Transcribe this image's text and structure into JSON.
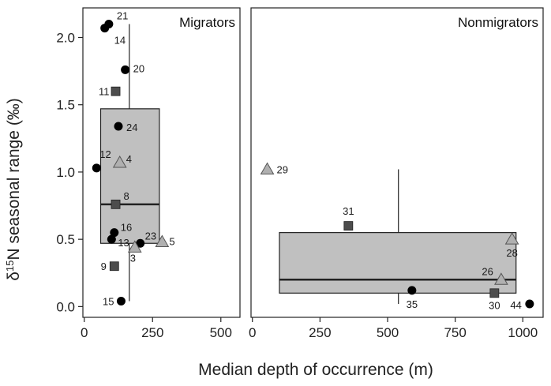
{
  "chart_data": {
    "type": "scatter",
    "subtype": "box-plot-with-points",
    "xlabel": "Median depth of occurrence (m)",
    "ylabel": "δ15N seasonal range (‰)",
    "ylabel_parts": {
      "prefix": "δ",
      "sup": "15",
      "rest": "N seasonal range (‰)"
    },
    "ylim": [
      -0.08,
      2.22
    ],
    "y_ticks": [
      0.0,
      0.5,
      1.0,
      1.5,
      2.0
    ],
    "y_tick_labels": [
      "0.0",
      "0.5",
      "1.0",
      "1.5",
      "2.0"
    ],
    "colors": {
      "square": "#4d4d4d",
      "circle": "#000000",
      "triangle": "#b0b0b0",
      "box_fill": "#c0c0c0",
      "stroke": "#222222"
    },
    "panels": [
      {
        "title": "Migrators",
        "xlim": [
          -5,
          570
        ],
        "x_ticks": [
          0,
          250,
          500
        ],
        "x_tick_labels": [
          "0",
          "250",
          "500"
        ],
        "box": {
          "x_start": 60,
          "x_end": 275,
          "q1": 0.47,
          "median": 0.76,
          "q3": 1.47,
          "whisker_x": 165,
          "whisker_low": 0.04,
          "whisker_high": 2.1
        },
        "points": [
          {
            "label": "21",
            "x": 90,
            "y": 2.1,
            "shape": "circle"
          },
          {
            "label": "14",
            "x": 75,
            "y": 2.07,
            "shape": "circle"
          },
          {
            "label": "20",
            "x": 150,
            "y": 1.76,
            "shape": "circle"
          },
          {
            "label": "11",
            "x": 115,
            "y": 1.6,
            "shape": "square"
          },
          {
            "label": "24",
            "x": 125,
            "y": 1.34,
            "shape": "circle"
          },
          {
            "label": "12",
            "x": 45,
            "y": 1.03,
            "shape": "circle"
          },
          {
            "label": "4",
            "x": 130,
            "y": 1.07,
            "shape": "triangle"
          },
          {
            "label": "8",
            "x": 115,
            "y": 0.76,
            "shape": "square"
          },
          {
            "label": "16",
            "x": 110,
            "y": 0.55,
            "shape": "circle"
          },
          {
            "label": "13",
            "x": 100,
            "y": 0.5,
            "shape": "circle"
          },
          {
            "label": "23",
            "x": 205,
            "y": 0.47,
            "shape": "circle"
          },
          {
            "label": "5",
            "x": 285,
            "y": 0.48,
            "shape": "triangle"
          },
          {
            "label": "3",
            "x": 185,
            "y": 0.44,
            "shape": "triangle"
          },
          {
            "label": "9",
            "x": 110,
            "y": 0.3,
            "shape": "square"
          },
          {
            "label": "15",
            "x": 135,
            "y": 0.04,
            "shape": "circle"
          }
        ]
      },
      {
        "title": "Nonmigrators",
        "xlim": [
          -5,
          1075
        ],
        "x_ticks": [
          0,
          250,
          500,
          750,
          1000
        ],
        "x_tick_labels": [
          "0",
          "250",
          "500",
          "750",
          "1000"
        ],
        "box": {
          "x_start": 100,
          "x_end": 975,
          "q1": 0.1,
          "median": 0.2,
          "q3": 0.55,
          "whisker_x": 540,
          "whisker_low": 0.02,
          "whisker_high": 1.02
        },
        "points": [
          {
            "label": "29",
            "x": 55,
            "y": 1.02,
            "shape": "triangle"
          },
          {
            "label": "31",
            "x": 355,
            "y": 0.6,
            "shape": "square"
          },
          {
            "label": "28",
            "x": 960,
            "y": 0.5,
            "shape": "triangle"
          },
          {
            "label": "26",
            "x": 920,
            "y": 0.2,
            "shape": "triangle"
          },
          {
            "label": "35",
            "x": 590,
            "y": 0.12,
            "shape": "circle"
          },
          {
            "label": "30",
            "x": 895,
            "y": 0.1,
            "shape": "square"
          },
          {
            "label": "44",
            "x": 1025,
            "y": 0.02,
            "shape": "circle"
          }
        ]
      }
    ]
  }
}
